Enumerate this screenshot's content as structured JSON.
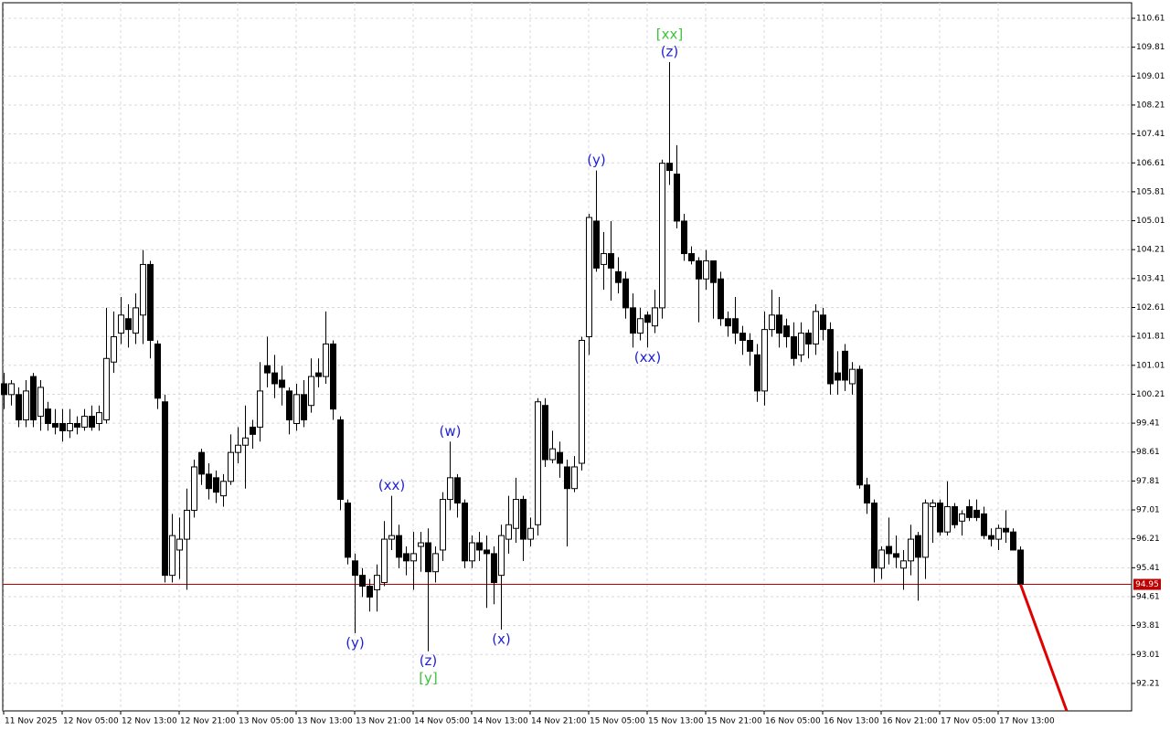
{
  "chart_data": {
    "type": "candlestick",
    "categories": [
      "11 Nov 2025",
      null,
      null,
      null,
      null,
      null,
      null,
      null,
      "12 Nov 05:00",
      null,
      null,
      null,
      null,
      null,
      null,
      null,
      "12 Nov 13:00",
      null,
      null,
      null,
      null,
      null,
      null,
      null,
      "12 Nov 21:00",
      null,
      null,
      null,
      null,
      null,
      null,
      null,
      "13 Nov 05:00",
      null,
      null,
      null,
      null,
      null,
      null,
      null,
      "13 Nov 13:00",
      null,
      null,
      null,
      null,
      null,
      null,
      null,
      "13 Nov 21:00",
      null,
      null,
      null,
      null,
      null,
      null,
      null,
      "14 Nov 05:00",
      null,
      null,
      null,
      null,
      null,
      null,
      null,
      "14 Nov 13:00",
      null,
      null,
      null,
      null,
      null,
      null,
      null,
      "14 Nov 21:00",
      null,
      null,
      null,
      null,
      null,
      null,
      null,
      "15 Nov 05:00",
      null,
      null,
      null,
      null,
      null,
      null,
      null,
      "15 Nov 13:00",
      null,
      null,
      null,
      null,
      null,
      null,
      null,
      "15 Nov 21:00",
      null,
      null,
      null,
      null,
      null,
      null,
      null,
      "16 Nov 05:00",
      null,
      null,
      null,
      null,
      null,
      null,
      null,
      "16 Nov 13:00",
      null,
      null,
      null,
      null,
      null,
      null,
      null,
      "16 Nov 21:00",
      null,
      null,
      null,
      null,
      null,
      null,
      null,
      "17 Nov 05:00",
      null,
      null,
      null,
      null,
      null,
      null,
      null,
      "17 Nov 13:00",
      null,
      null,
      null
    ],
    "open": [
      100.5,
      100.2,
      100.2,
      99.5,
      100.7,
      99.6,
      99.8,
      99.4,
      99.4,
      99.2,
      99.4,
      99.3,
      99.6,
      99.4,
      99.5,
      101.1,
      101.9,
      102.3,
      101.9,
      102.4,
      103.8,
      101.6,
      100.0,
      95.2,
      95.9,
      96.2,
      97.0,
      98.6,
      98.0,
      97.9,
      97.4,
      97.8,
      98.6,
      98.8,
      99.3,
      99.3,
      101.0,
      100.8,
      100.6,
      100.3,
      99.4,
      100.2,
      99.9,
      100.8,
      100.7,
      101.6,
      99.5,
      97.2,
      95.6,
      95.2,
      94.9,
      94.8,
      95.0,
      96.2,
      96.3,
      95.8,
      95.6,
      96.0,
      96.1,
      95.3,
      95.9,
      97.3,
      97.9,
      97.2,
      95.6,
      96.1,
      95.9,
      95.8,
      95.2,
      96.2,
      96.5,
      97.3,
      96.2,
      96.6,
      99.9,
      98.4,
      98.6,
      98.2,
      97.6,
      98.3,
      101.8,
      105.0,
      103.8,
      104.1,
      103.6,
      103.4,
      102.6,
      101.9,
      102.4,
      102.1,
      102.6,
      106.6,
      106.3,
      105.0,
      104.1,
      103.9,
      103.4,
      103.9,
      103.4,
      102.3,
      102.3,
      101.9,
      101.7,
      101.3,
      100.3,
      102.0,
      102.4,
      102.1,
      101.8,
      101.3,
      101.9,
      101.6,
      102.4,
      102.0,
      100.8,
      101.4,
      100.5,
      100.9,
      97.7,
      97.2,
      95.4,
      96.0,
      95.8,
      95.4,
      95.6,
      96.3,
      95.7,
      97.1,
      97.2,
      96.4,
      97.1,
      96.7,
      97.1,
      97.0,
      96.9,
      96.3,
      96.2,
      96.5,
      96.4,
      95.9
    ],
    "high": [
      100.8,
      100.6,
      100.4,
      100.6,
      100.8,
      100.6,
      100.0,
      99.8,
      99.8,
      99.8,
      99.6,
      99.8,
      99.9,
      99.9,
      102.6,
      102.5,
      102.9,
      102.7,
      103.0,
      104.2,
      103.9,
      101.7,
      100.2,
      96.9,
      96.8,
      97.6,
      98.4,
      98.7,
      98.3,
      98.1,
      98.0,
      99.1,
      99.3,
      99.9,
      99.5,
      101.1,
      101.8,
      101.3,
      101.0,
      100.4,
      100.5,
      100.6,
      101.2,
      101.2,
      102.5,
      101.7,
      99.6,
      97.3,
      95.8,
      95.4,
      95.1,
      95.5,
      96.7,
      97.4,
      96.6,
      96.0,
      96.4,
      96.4,
      96.5,
      96.0,
      97.5,
      98.9,
      98.0,
      97.3,
      96.3,
      96.4,
      96.3,
      96.0,
      96.6,
      97.4,
      97.9,
      97.4,
      96.8,
      100.1,
      100.1,
      99.2,
      98.9,
      98.4,
      98.5,
      101.8,
      105.2,
      106.4,
      104.7,
      105.0,
      104.0,
      103.6,
      103.0,
      102.6,
      102.5,
      103.1,
      106.7,
      109.4,
      107.1,
      105.2,
      104.3,
      104.0,
      104.2,
      103.9,
      103.6,
      102.5,
      102.9,
      102.1,
      101.9,
      101.6,
      102.5,
      103.1,
      102.9,
      102.3,
      102.2,
      102.2,
      102.0,
      102.7,
      102.6,
      102.2,
      101.4,
      101.6,
      101.1,
      101.0,
      97.9,
      97.3,
      96.0,
      96.8,
      96.3,
      95.9,
      96.6,
      96.4,
      97.3,
      97.3,
      97.3,
      97.8,
      97.2,
      97.0,
      97.3,
      97.3,
      97.1,
      96.5,
      96.6,
      97.0,
      96.5,
      96.0
    ],
    "low": [
      99.8,
      99.9,
      99.3,
      99.3,
      99.3,
      99.2,
      99.2,
      99.1,
      98.9,
      99.0,
      99.1,
      99.2,
      99.2,
      99.2,
      99.4,
      100.8,
      101.6,
      101.5,
      101.6,
      101.6,
      101.2,
      99.8,
      95.0,
      95.0,
      95.1,
      94.8,
      96.8,
      97.7,
      97.3,
      97.2,
      97.1,
      97.7,
      98.3,
      97.6,
      98.7,
      98.9,
      100.4,
      100.1,
      99.9,
      99.1,
      99.2,
      99.3,
      99.7,
      100.4,
      100.5,
      99.5,
      97.0,
      95.5,
      93.6,
      94.6,
      94.2,
      94.2,
      94.9,
      95.9,
      95.4,
      95.2,
      94.8,
      95.3,
      93.1,
      95.0,
      95.6,
      97.0,
      96.8,
      95.4,
      95.4,
      95.6,
      94.3,
      94.4,
      93.7,
      95.8,
      96.1,
      95.6,
      96.0,
      96.3,
      98.2,
      98.3,
      97.9,
      96.0,
      97.5,
      98.1,
      101.3,
      103.6,
      103.1,
      102.8,
      103.0,
      102.3,
      101.5,
      101.7,
      101.5,
      101.9,
      102.3,
      106.0,
      104.8,
      103.9,
      103.8,
      102.2,
      103.1,
      102.3,
      102.1,
      101.8,
      101.6,
      101.3,
      101.0,
      100.0,
      99.9,
      101.8,
      101.5,
      101.5,
      101.0,
      101.1,
      101.2,
      101.3,
      101.7,
      100.2,
      100.2,
      100.3,
      100.2,
      97.6,
      96.9,
      95.0,
      95.1,
      95.5,
      95.4,
      94.8,
      95.2,
      94.5,
      95.1,
      96.1,
      96.3,
      96.3,
      96.5,
      96.3,
      96.7,
      96.7,
      96.2,
      96.0,
      95.9,
      96.1,
      95.9,
      94.9
    ],
    "close": [
      100.2,
      100.5,
      99.5,
      100.3,
      99.5,
      100.4,
      99.4,
      99.3,
      99.2,
      99.4,
      99.3,
      99.6,
      99.3,
      99.7,
      101.2,
      101.8,
      102.4,
      102.0,
      102.6,
      103.8,
      101.7,
      100.1,
      95.2,
      96.3,
      96.2,
      97.0,
      98.2,
      98.0,
      97.6,
      97.5,
      97.8,
      98.6,
      98.8,
      99.0,
      99.1,
      100.3,
      100.8,
      100.5,
      100.4,
      99.5,
      100.2,
      99.5,
      100.7,
      100.7,
      101.6,
      99.8,
      97.3,
      95.7,
      95.2,
      94.9,
      94.6,
      95.2,
      96.2,
      96.3,
      95.7,
      95.6,
      95.8,
      96.1,
      95.3,
      95.8,
      97.3,
      97.9,
      97.2,
      95.6,
      96.1,
      95.9,
      95.8,
      95.0,
      96.3,
      96.6,
      97.3,
      96.2,
      96.5,
      100.0,
      98.4,
      98.7,
      98.3,
      97.6,
      98.2,
      101.7,
      105.1,
      103.7,
      104.1,
      103.7,
      103.3,
      102.6,
      101.9,
      102.3,
      102.2,
      102.6,
      106.6,
      106.4,
      105.0,
      104.1,
      103.9,
      103.4,
      103.9,
      103.3,
      102.3,
      102.1,
      101.9,
      101.7,
      101.4,
      100.3,
      102.0,
      102.4,
      101.9,
      101.8,
      101.2,
      101.9,
      101.6,
      102.5,
      102.0,
      100.5,
      100.6,
      100.6,
      100.9,
      97.7,
      97.2,
      95.4,
      95.9,
      95.8,
      95.7,
      95.6,
      96.2,
      95.7,
      97.2,
      97.2,
      96.4,
      97.1,
      96.6,
      96.9,
      96.8,
      96.8,
      96.3,
      96.2,
      96.5,
      96.4,
      95.9,
      94.95
    ],
    "ylim": [
      91.45,
      111.04
    ],
    "yticks": [
      92.21,
      93.01,
      93.81,
      94.61,
      95.41,
      96.21,
      97.01,
      97.81,
      98.61,
      99.41,
      100.21,
      101.01,
      101.81,
      102.61,
      103.41,
      104.21,
      105.01,
      105.81,
      106.61,
      107.41,
      108.21,
      109.01,
      109.81,
      110.61
    ],
    "grid": true,
    "last_price": 94.95,
    "annotations": [
      {
        "text": "(y)",
        "candle": 48,
        "position": "below",
        "color": "#1f1fd6"
      },
      {
        "text": "(xx)",
        "candle": 53,
        "position": "above",
        "color": "#1f1fd6"
      },
      {
        "text": "(z)",
        "candle": 58,
        "position": "below",
        "color": "#1f1fd6"
      },
      {
        "text": "[y]",
        "candle": 58,
        "position": "below",
        "color": "#3cc43c"
      },
      {
        "text": "(w)",
        "candle": 61,
        "position": "above",
        "color": "#1f1fd6"
      },
      {
        "text": "(x)",
        "candle": 68,
        "position": "below",
        "color": "#1f1fd6"
      },
      {
        "text": "(y)",
        "candle": 81,
        "position": "above",
        "color": "#1f1fd6"
      },
      {
        "text": "(xx)",
        "candle": 88,
        "position": "below",
        "color": "#1f1fd6"
      },
      {
        "text": "(z)",
        "candle": 91,
        "position": "above",
        "color": "#1f1fd6"
      },
      {
        "text": "[xx]",
        "candle": 91,
        "position": "above",
        "color": "#3cc43c"
      }
    ]
  }
}
